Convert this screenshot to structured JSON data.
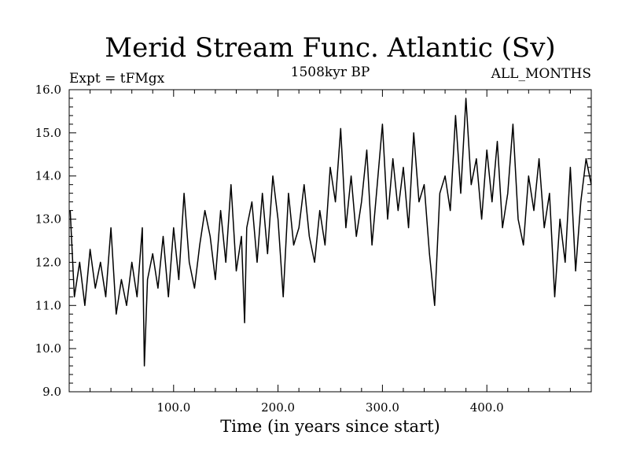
{
  "chart_data": {
    "type": "line",
    "title": "Merid Stream Func. Atlantic (Sv)",
    "subtitle": "1508kyr BP",
    "left_label": "Expt = tFMgx",
    "right_label": "ALL_MONTHS",
    "xlabel": "Time (in years since start)",
    "ylabel": "",
    "xlim": [
      0,
      500
    ],
    "ylim": [
      9.0,
      16.0
    ],
    "xticks": [
      100,
      200,
      300,
      400
    ],
    "xtick_labels": [
      "100.0",
      "200.0",
      "300.0",
      "400.0"
    ],
    "yticks": [
      9,
      10,
      11,
      12,
      13,
      14,
      15,
      16
    ],
    "ytick_labels": [
      "9.0",
      "10.0",
      "11.0",
      "12.0",
      "13.0",
      "14.0",
      "15.0",
      "16.0"
    ],
    "series": [
      {
        "name": "Merid Stream Func. Atlantic",
        "color": "#000000",
        "x": [
          1,
          5,
          10,
          15,
          20,
          25,
          30,
          35,
          40,
          45,
          50,
          55,
          60,
          65,
          70,
          72,
          75,
          80,
          85,
          90,
          95,
          100,
          105,
          110,
          115,
          120,
          125,
          130,
          135,
          140,
          145,
          150,
          155,
          160,
          165,
          168,
          170,
          175,
          180,
          185,
          190,
          195,
          200,
          205,
          210,
          215,
          220,
          225,
          230,
          235,
          240,
          245,
          250,
          255,
          260,
          265,
          270,
          275,
          280,
          285,
          290,
          295,
          300,
          305,
          310,
          315,
          320,
          325,
          330,
          335,
          340,
          345,
          350,
          355,
          360,
          365,
          370,
          375,
          380,
          385,
          390,
          395,
          400,
          405,
          410,
          415,
          420,
          425,
          430,
          435,
          440,
          445,
          450,
          455,
          460,
          465,
          470,
          475,
          480,
          485,
          490,
          495,
          500
        ],
        "y": [
          13.2,
          11.2,
          12.0,
          11.0,
          12.3,
          11.4,
          12.0,
          11.2,
          12.8,
          10.8,
          11.6,
          11.0,
          12.0,
          11.2,
          12.8,
          9.6,
          11.6,
          12.2,
          11.4,
          12.6,
          11.2,
          12.8,
          11.6,
          13.6,
          12.0,
          11.4,
          12.4,
          13.2,
          12.6,
          11.6,
          13.2,
          12.0,
          13.8,
          11.8,
          12.6,
          10.6,
          12.8,
          13.4,
          12.0,
          13.6,
          12.2,
          14.0,
          13.0,
          11.2,
          13.6,
          12.4,
          12.8,
          13.8,
          12.6,
          12.0,
          13.2,
          12.4,
          14.2,
          13.4,
          15.1,
          12.8,
          14.0,
          12.6,
          13.4,
          14.6,
          12.4,
          13.8,
          15.2,
          13.0,
          14.4,
          13.2,
          14.2,
          12.8,
          15.0,
          13.4,
          13.8,
          12.2,
          11.0,
          13.6,
          14.0,
          13.2,
          15.4,
          13.6,
          15.8,
          13.8,
          14.4,
          13.0,
          14.6,
          13.4,
          14.8,
          12.8,
          13.6,
          15.2,
          13.0,
          12.4,
          14.0,
          13.2,
          14.4,
          12.8,
          13.6,
          11.2,
          13.0,
          12.0,
          14.2,
          11.8,
          13.4,
          14.4,
          13.8
        ]
      }
    ]
  }
}
